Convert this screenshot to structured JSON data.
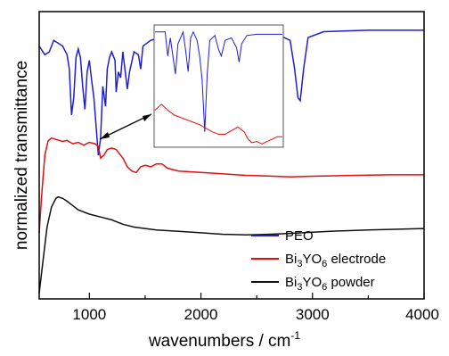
{
  "chart_data": {
    "type": "line",
    "xlabel": "wavenumbers / cm",
    "xlabel_sup": "-1",
    "ylabel": "normalized transmittance",
    "xlim": [
      550,
      4000
    ],
    "xticks": [
      1000,
      2000,
      3000,
      4000
    ],
    "x_minor_step": 500,
    "grid": false,
    "legend_position": "bottom-right",
    "inset_range": [
      1000,
      1400
    ],
    "series": [
      {
        "name": "PEO",
        "color": "#1f1fd0",
        "points": [
          [
            550,
            0.88
          ],
          [
            600,
            0.85
          ],
          [
            640,
            0.86
          ],
          [
            680,
            0.9
          ],
          [
            720,
            0.89
          ],
          [
            760,
            0.88
          ],
          [
            800,
            0.85
          ],
          [
            820,
            0.8
          ],
          [
            840,
            0.64
          ],
          [
            860,
            0.7
          ],
          [
            880,
            0.84
          ],
          [
            900,
            0.87
          ],
          [
            920,
            0.84
          ],
          [
            940,
            0.74
          ],
          [
            960,
            0.66
          ],
          [
            980,
            0.79
          ],
          [
            1000,
            0.83
          ],
          [
            1020,
            0.76
          ],
          [
            1040,
            0.7
          ],
          [
            1060,
            0.6
          ],
          [
            1080,
            0.5
          ],
          [
            1100,
            0.56
          ],
          [
            1120,
            0.74
          ],
          [
            1145,
            0.67
          ],
          [
            1160,
            0.8
          ],
          [
            1180,
            0.84
          ],
          [
            1200,
            0.86
          ],
          [
            1230,
            0.83
          ],
          [
            1240,
            0.72
          ],
          [
            1260,
            0.79
          ],
          [
            1280,
            0.77
          ],
          [
            1300,
            0.86
          ],
          [
            1340,
            0.73
          ],
          [
            1360,
            0.79
          ],
          [
            1400,
            0.86
          ],
          [
            1440,
            0.85
          ],
          [
            1460,
            0.8
          ],
          [
            1480,
            0.88
          ],
          [
            1550,
            0.9
          ],
          [
            1650,
            0.91
          ],
          [
            1800,
            0.92
          ],
          [
            2000,
            0.925
          ],
          [
            2300,
            0.925
          ],
          [
            2600,
            0.922
          ],
          [
            2700,
            0.918
          ],
          [
            2800,
            0.9
          ],
          [
            2840,
            0.8
          ],
          [
            2870,
            0.7
          ],
          [
            2890,
            0.69
          ],
          [
            2920,
            0.8
          ],
          [
            2960,
            0.91
          ],
          [
            3100,
            0.93
          ],
          [
            3500,
            0.935
          ],
          [
            4000,
            0.935
          ]
        ]
      },
      {
        "name": "Bi3YO6 electrode",
        "name_main": "Bi",
        "name_sub1": "3",
        "name_mid": "YO",
        "name_sub2": "6",
        "name_tail": " electrode",
        "color": "#e01010",
        "points": [
          [
            550,
            0.23
          ],
          [
            570,
            0.35
          ],
          [
            600,
            0.5
          ],
          [
            630,
            0.55
          ],
          [
            660,
            0.56
          ],
          [
            700,
            0.555
          ],
          [
            760,
            0.548
          ],
          [
            800,
            0.552
          ],
          [
            850,
            0.54
          ],
          [
            900,
            0.545
          ],
          [
            950,
            0.535
          ],
          [
            1000,
            0.545
          ],
          [
            1050,
            0.54
          ],
          [
            1080,
            0.53
          ],
          [
            1100,
            0.49
          ],
          [
            1130,
            0.5
          ],
          [
            1160,
            0.52
          ],
          [
            1200,
            0.525
          ],
          [
            1240,
            0.52
          ],
          [
            1300,
            0.49
          ],
          [
            1340,
            0.46
          ],
          [
            1380,
            0.445
          ],
          [
            1420,
            0.44
          ],
          [
            1460,
            0.46
          ],
          [
            1500,
            0.465
          ],
          [
            1550,
            0.46
          ],
          [
            1600,
            0.47
          ],
          [
            1650,
            0.47
          ],
          [
            1700,
            0.455
          ],
          [
            1800,
            0.445
          ],
          [
            2000,
            0.44
          ],
          [
            2200,
            0.435
          ],
          [
            2400,
            0.43
          ],
          [
            2600,
            0.428
          ],
          [
            2800,
            0.425
          ],
          [
            3000,
            0.427
          ],
          [
            3400,
            0.43
          ],
          [
            3700,
            0.432
          ],
          [
            4000,
            0.432
          ]
        ]
      },
      {
        "name": "Bi3YO6 powder",
        "name_main": "Bi",
        "name_sub1": "3",
        "name_mid": "YO",
        "name_sub2": "6",
        "name_tail": " powder",
        "color": "#111111",
        "points": [
          [
            550,
            0.02
          ],
          [
            580,
            0.12
          ],
          [
            620,
            0.25
          ],
          [
            660,
            0.32
          ],
          [
            700,
            0.35
          ],
          [
            720,
            0.355
          ],
          [
            760,
            0.35
          ],
          [
            800,
            0.34
          ],
          [
            900,
            0.31
          ],
          [
            1000,
            0.295
          ],
          [
            1100,
            0.285
          ],
          [
            1200,
            0.275
          ],
          [
            1300,
            0.26
          ],
          [
            1400,
            0.25
          ],
          [
            1500,
            0.245
          ],
          [
            1600,
            0.24
          ],
          [
            1800,
            0.235
          ],
          [
            2000,
            0.23
          ],
          [
            2200,
            0.225
          ],
          [
            2400,
            0.223
          ],
          [
            2600,
            0.225
          ],
          [
            2800,
            0.228
          ],
          [
            3000,
            0.232
          ],
          [
            3200,
            0.236
          ],
          [
            3500,
            0.24
          ],
          [
            4000,
            0.245
          ]
        ]
      }
    ],
    "inset": {
      "series": [
        {
          "name": "PEO",
          "color": "#1f1fd0",
          "points": [
            [
              0,
              0.95
            ],
            [
              0.08,
              0.95
            ],
            [
              0.1,
              0.75
            ],
            [
              0.12,
              0.9
            ],
            [
              0.16,
              0.6
            ],
            [
              0.18,
              0.85
            ],
            [
              0.22,
              0.95
            ],
            [
              0.24,
              0.8
            ],
            [
              0.26,
              0.62
            ],
            [
              0.28,
              0.9
            ],
            [
              0.3,
              0.95
            ],
            [
              0.33,
              0.88
            ],
            [
              0.35,
              0.75
            ],
            [
              0.37,
              0.55
            ],
            [
              0.39,
              0.12
            ],
            [
              0.41,
              0.6
            ],
            [
              0.43,
              0.88
            ],
            [
              0.47,
              0.92
            ],
            [
              0.5,
              0.8
            ],
            [
              0.52,
              0.75
            ],
            [
              0.55,
              0.88
            ],
            [
              0.6,
              0.9
            ],
            [
              0.64,
              0.82
            ],
            [
              0.66,
              0.7
            ],
            [
              0.68,
              0.85
            ],
            [
              0.72,
              0.92
            ],
            [
              0.8,
              0.93
            ],
            [
              0.86,
              0.93
            ],
            [
              1.0,
              0.93
            ]
          ]
        },
        {
          "name": "Bi3YO6 electrode",
          "color": "#e01010",
          "points": [
            [
              0,
              0.3
            ],
            [
              0.05,
              0.35
            ],
            [
              0.1,
              0.3
            ],
            [
              0.15,
              0.26
            ],
            [
              0.2,
              0.24
            ],
            [
              0.25,
              0.22
            ],
            [
              0.3,
              0.2
            ],
            [
              0.35,
              0.18
            ],
            [
              0.4,
              0.15
            ],
            [
              0.45,
              0.12
            ],
            [
              0.5,
              0.1
            ],
            [
              0.55,
              0.1
            ],
            [
              0.6,
              0.13
            ],
            [
              0.65,
              0.16
            ],
            [
              0.7,
              0.12
            ],
            [
              0.73,
              0.06
            ],
            [
              0.76,
              0.03
            ],
            [
              0.8,
              0.04
            ],
            [
              0.84,
              0.02
            ],
            [
              0.88,
              0.04
            ],
            [
              0.92,
              0.06
            ],
            [
              0.96,
              0.08
            ],
            [
              1.0,
              0.08
            ]
          ]
        }
      ]
    }
  }
}
